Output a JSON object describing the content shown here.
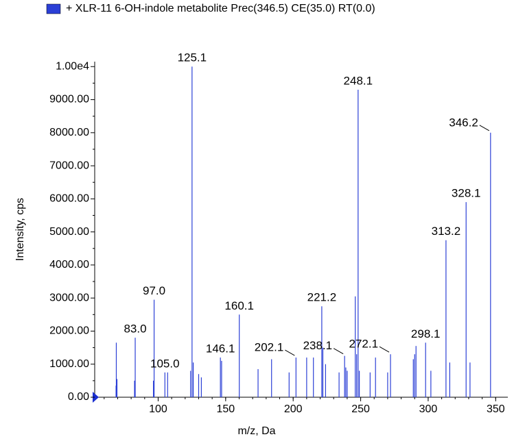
{
  "chart_data": {
    "type": "stick",
    "series": [
      {
        "name": "+ XLR-11 6-OH-indole metabolite Prec(346.5) CE(35.0) RT(0.0)",
        "color": "#2b3fd6",
        "x": [
          68.8,
          69,
          69.5,
          82.5,
          83,
          96.5,
          97,
          105,
          107,
          124,
          125.1,
          126,
          130,
          132,
          146.1,
          147,
          160.1,
          174,
          184,
          197,
          202.1,
          210,
          215,
          221.2,
          222,
          224,
          234,
          238.1,
          239,
          240,
          246,
          247,
          248.1,
          249,
          257,
          261,
          270,
          272.1,
          289,
          290,
          291,
          298.1,
          302,
          313.2,
          316,
          328.1,
          331,
          346.2
        ],
        "values": [
          350,
          1650,
          550,
          500,
          1800,
          500,
          2950,
          750,
          750,
          800,
          10000,
          1050,
          700,
          600,
          1200,
          1100,
          2500,
          850,
          1150,
          750,
          1200,
          1200,
          1200,
          2750,
          1500,
          1000,
          750,
          1250,
          900,
          800,
          3050,
          1300,
          9300,
          800,
          750,
          1200,
          750,
          1300,
          1150,
          1300,
          1550,
          1650,
          800,
          4750,
          1050,
          5900,
          1050,
          8000
        ],
        "peak_labels": [
          null,
          null,
          null,
          null,
          "83.0",
          null,
          "97.0",
          "105.0",
          null,
          null,
          "125.1",
          null,
          null,
          null,
          "146.1",
          null,
          "160.1",
          null,
          null,
          null,
          "202.1",
          null,
          null,
          "221.2",
          null,
          null,
          null,
          "238.1",
          null,
          null,
          null,
          null,
          "248.1",
          null,
          null,
          null,
          null,
          "272.1",
          null,
          null,
          null,
          "298.1",
          null,
          "313.2",
          null,
          "328.1",
          null,
          "346.2"
        ]
      }
    ],
    "xlabel": "m/z, Da",
    "ylabel": "Intensity, cps",
    "xlim": [
      53,
      359
    ],
    "ylim": [
      0,
      10150
    ],
    "xticks": [
      100,
      150,
      200,
      250,
      300,
      350
    ],
    "yticks": [
      {
        "value": 0,
        "label": "0.00"
      },
      {
        "value": 1000,
        "label": "1000.00"
      },
      {
        "value": 2000,
        "label": "2000.00"
      },
      {
        "value": 3000,
        "label": "3000.00"
      },
      {
        "value": 4000,
        "label": "4000.00"
      },
      {
        "value": 5000,
        "label": "5000.00"
      },
      {
        "value": 6000,
        "label": "6000.00"
      },
      {
        "value": 7000,
        "label": "7000.00"
      },
      {
        "value": 8000,
        "label": "8000.00"
      },
      {
        "value": 9000,
        "label": "9000.00"
      },
      {
        "value": 10000,
        "label": "1.00e4"
      }
    ]
  }
}
